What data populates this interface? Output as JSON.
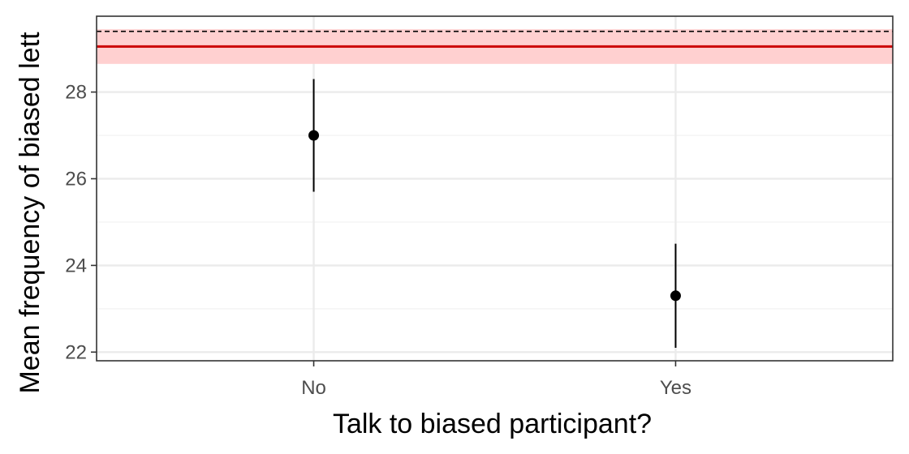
{
  "chart_data": {
    "type": "scatter",
    "title": "",
    "xlabel": "Talk to biased participant?",
    "ylabel": "Mean frequency of biased lett",
    "categories": [
      "No",
      "Yes"
    ],
    "series": [
      {
        "values": [
          27.0,
          23.3
        ],
        "error_low": [
          25.7,
          22.1
        ],
        "error_high": [
          28.3,
          24.5
        ]
      }
    ],
    "reference": {
      "mean": 29.05,
      "ci_low": 28.65,
      "ci_high": 29.45,
      "dashed_line": 29.4,
      "line_color": "#cc0000",
      "band_color": "#ffd0d0"
    },
    "ylim": [
      21.8,
      29.75
    ],
    "yticks": [
      22,
      24,
      26,
      28
    ],
    "grid": true,
    "legend": "none"
  }
}
